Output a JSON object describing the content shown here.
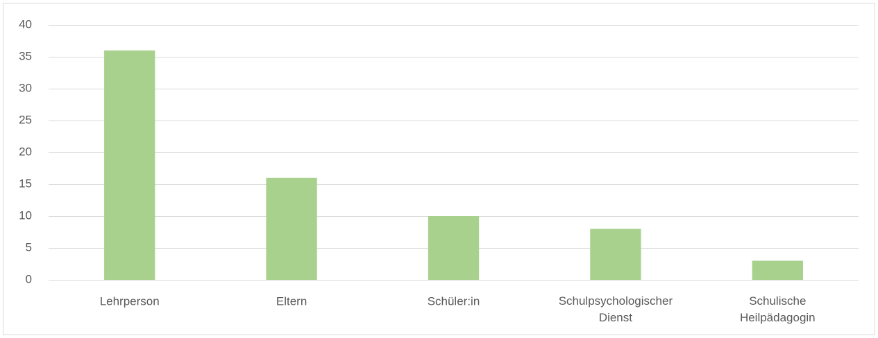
{
  "chart_data": {
    "type": "bar",
    "categories": [
      "Lehrperson",
      "Eltern",
      "Schüler:in",
      "Schulpsychologischer Dienst",
      "Schulische Heilpädagogin"
    ],
    "values": [
      36,
      16,
      10,
      8,
      3
    ],
    "color": "#a9d18e",
    "ylim": [
      0,
      40
    ],
    "yticks": [
      0,
      5,
      10,
      15,
      20,
      25,
      30,
      35,
      40
    ],
    "grid": true
  }
}
